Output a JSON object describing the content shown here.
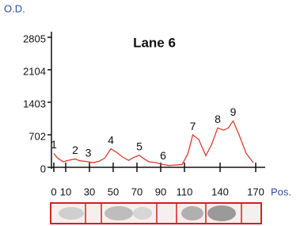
{
  "chart_data": {
    "type": "line",
    "title": "Lane 6",
    "x_label": "Pos.",
    "y_label": "O.D.",
    "series": [
      {
        "name": "Lane 6",
        "color": "#d83a2e",
        "x": [
          0,
          3,
          8,
          12,
          18,
          22,
          26,
          29,
          33,
          38,
          43,
          48,
          53,
          58,
          63,
          67,
          72,
          75,
          80,
          86,
          92,
          97,
          103,
          108,
          113,
          117,
          122,
          128,
          133,
          138,
          143,
          147,
          151,
          156,
          162,
          168
        ],
        "values": [
          300,
          200,
          120,
          150,
          180,
          140,
          130,
          120,
          100,
          130,
          200,
          400,
          320,
          220,
          150,
          210,
          260,
          200,
          120,
          100,
          60,
          40,
          50,
          60,
          300,
          700,
          600,
          250,
          500,
          850,
          800,
          850,
          1000,
          700,
          300,
          100
        ]
      }
    ],
    "annotations": [
      {
        "text": "1",
        "x": 0,
        "y": 300
      },
      {
        "text": "2",
        "x": 18,
        "y": 180
      },
      {
        "text": "3",
        "x": 29,
        "y": 120
      },
      {
        "text": "4",
        "x": 48,
        "y": 400
      },
      {
        "text": "5",
        "x": 72,
        "y": 260
      },
      {
        "text": "6",
        "x": 92,
        "y": 60
      },
      {
        "text": "7",
        "x": 117,
        "y": 700
      },
      {
        "text": "8",
        "x": 138,
        "y": 850
      },
      {
        "text": "9",
        "x": 151,
        "y": 1000
      }
    ],
    "xlim": [
      0,
      170
    ],
    "xticks": [
      0,
      10,
      30,
      50,
      70,
      90,
      110,
      140,
      170
    ],
    "ylim": [
      0,
      2805
    ],
    "yticks": [
      0,
      702,
      1403,
      2104,
      2805
    ]
  }
}
